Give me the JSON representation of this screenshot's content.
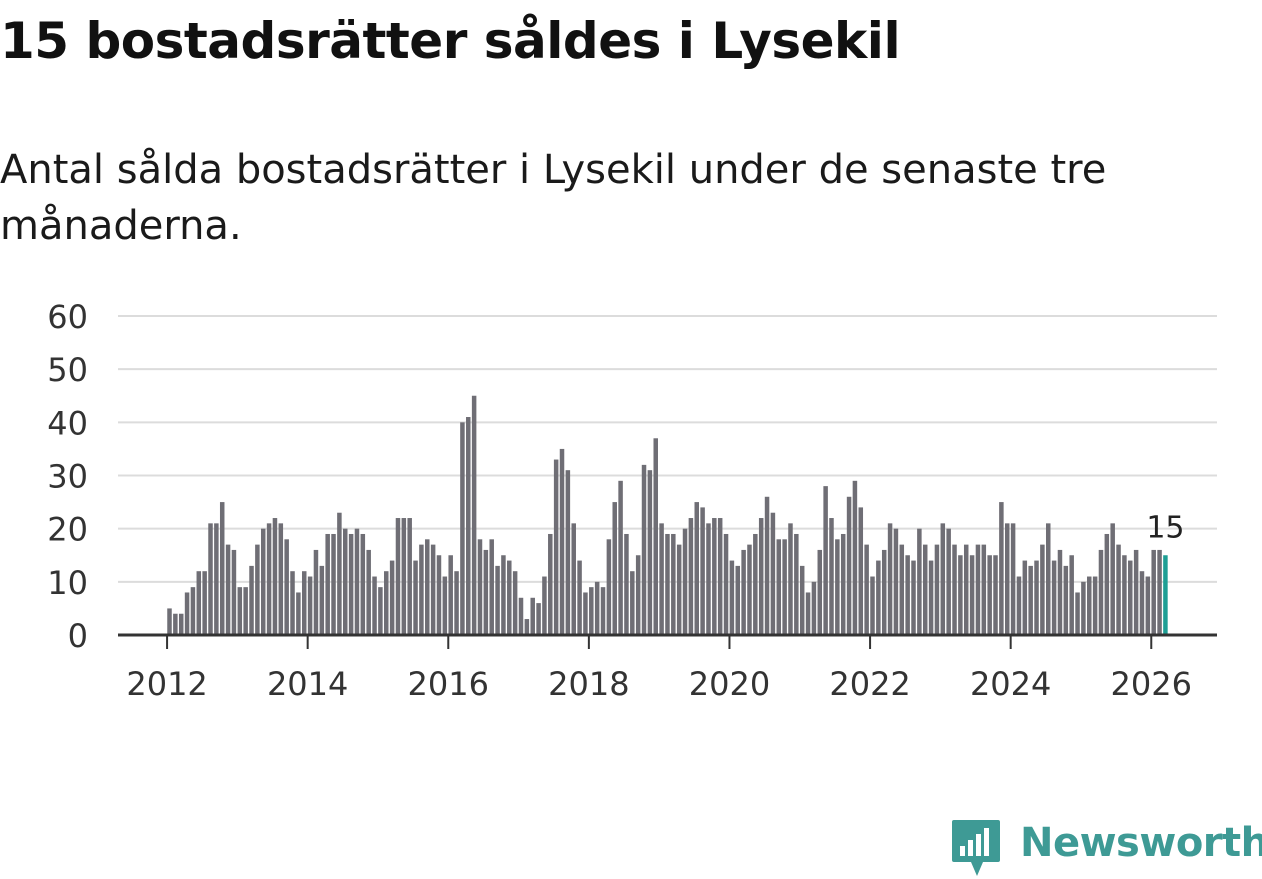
{
  "page": {
    "title": "15 bostadsrätter såldes i Lysekil",
    "subtitle": "Antal sålda bostadsrätter i Lysekil under de senaste tre månaderna.",
    "brand": "Newsworthy"
  },
  "colors": {
    "bar": "#6f6e75",
    "highlight": "#1e9e94",
    "grid": "#dcdcdc",
    "axis": "#333333",
    "text": "#333333",
    "brand": "#3e9a95"
  },
  "chart_data": {
    "type": "bar",
    "title": "15 bostadsrätter såldes i Lysekil",
    "subtitle": "Antal sålda bostadsrätter i Lysekil under de senaste tre månaderna.",
    "xlabel": "",
    "ylabel": "",
    "ylim": [
      0,
      60
    ],
    "yticks": [
      "0",
      "10",
      "20",
      "30",
      "40",
      "50",
      "60"
    ],
    "xticks": [
      "2012",
      "2014",
      "2016",
      "2018",
      "2020",
      "2022",
      "2024",
      "2026"
    ],
    "grid": true,
    "legend": "none",
    "start": "2012-01",
    "highlight_label": "15",
    "values": [
      5,
      4,
      4,
      8,
      9,
      12,
      12,
      21,
      21,
      25,
      17,
      16,
      9,
      9,
      13,
      17,
      20,
      21,
      22,
      21,
      18,
      12,
      8,
      12,
      11,
      16,
      13,
      19,
      19,
      23,
      20,
      19,
      20,
      19,
      16,
      11,
      9,
      12,
      14,
      22,
      22,
      22,
      14,
      17,
      18,
      17,
      15,
      11,
      15,
      12,
      40,
      41,
      45,
      18,
      16,
      18,
      13,
      15,
      14,
      12,
      7,
      3,
      7,
      6,
      11,
      19,
      33,
      35,
      31,
      21,
      14,
      8,
      9,
      10,
      9,
      18,
      25,
      29,
      19,
      12,
      15,
      32,
      31,
      37,
      21,
      19,
      19,
      17,
      20,
      22,
      25,
      24,
      21,
      22,
      22,
      19,
      14,
      13,
      16,
      17,
      19,
      22,
      26,
      23,
      18,
      18,
      21,
      19,
      13,
      8,
      10,
      16,
      28,
      22,
      18,
      19,
      26,
      29,
      24,
      17,
      11,
      14,
      16,
      21,
      20,
      17,
      15,
      14,
      20,
      17,
      14,
      17,
      21,
      20,
      17,
      15,
      17,
      15,
      17,
      17,
      15,
      15,
      25,
      21,
      21,
      11,
      14,
      13,
      14,
      17,
      21,
      14,
      16,
      13,
      15,
      8,
      10,
      11,
      11,
      16,
      19,
      21,
      17,
      15,
      14,
      16,
      12,
      11,
      16,
      16,
      15
    ]
  }
}
